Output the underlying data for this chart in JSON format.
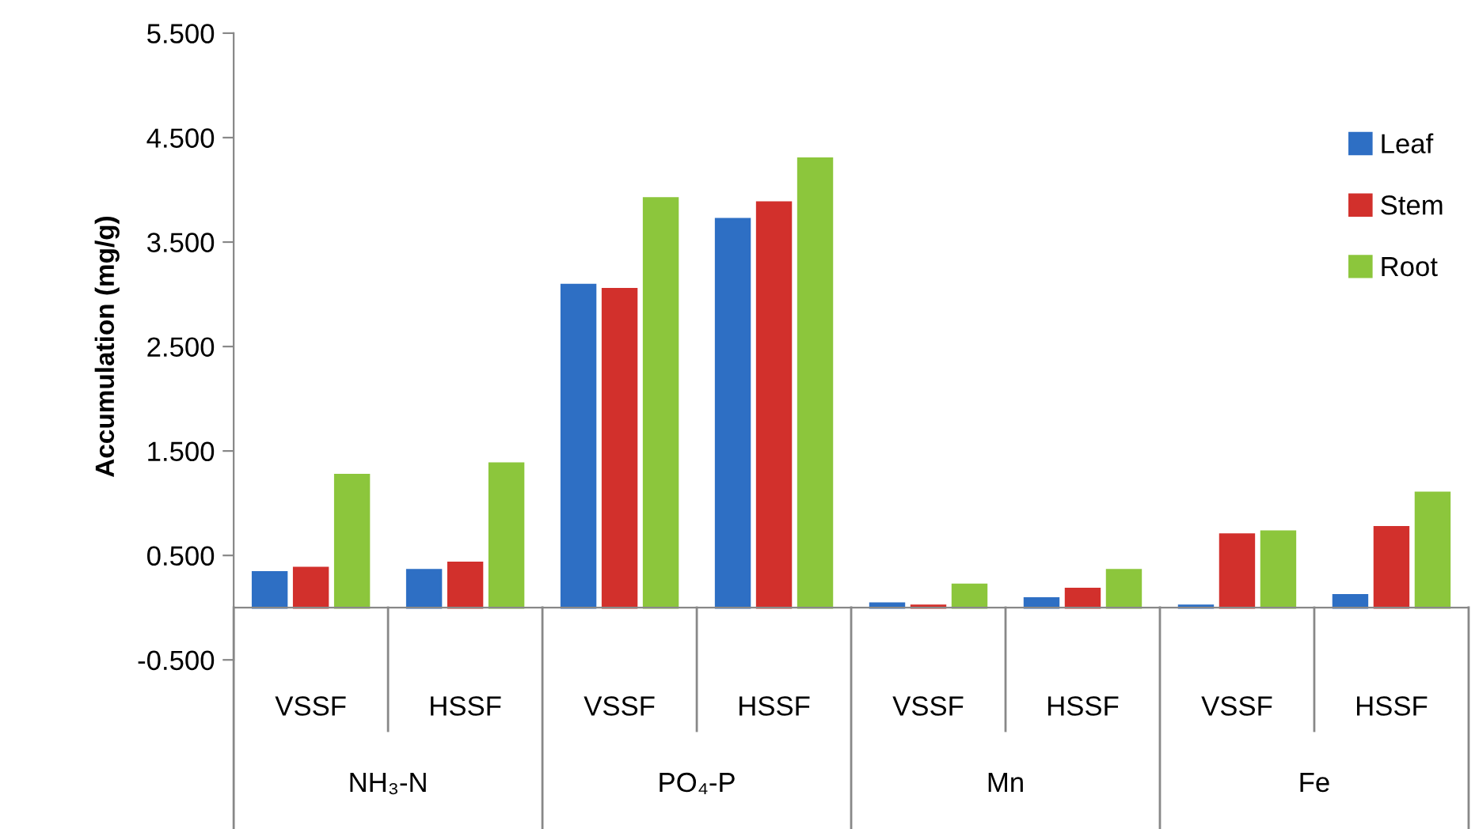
{
  "chart_data": {
    "type": "bar",
    "ylabel": "Accumulation (mg/g)",
    "categories": [
      "VSSF",
      "HSSF",
      "VSSF",
      "HSSF",
      "VSSF",
      "HSSF",
      "VSSF",
      "HSSF"
    ],
    "annotations": [
      "NH₃-N",
      "PO₄-P",
      "Mn",
      "Fe"
    ],
    "series": [
      {
        "name": "Leaf",
        "color": "#2e6fc4",
        "values": [
          0.34,
          0.36,
          3.09,
          3.72,
          0.04,
          0.09,
          0.02,
          0.12
        ]
      },
      {
        "name": "Stem",
        "color": "#d2302c",
        "values": [
          0.38,
          0.43,
          3.05,
          3.88,
          0.02,
          0.18,
          0.7,
          0.77
        ]
      },
      {
        "name": "Root",
        "color": "#8cc63c",
        "values": [
          1.27,
          1.38,
          3.92,
          4.3,
          0.22,
          0.36,
          0.73,
          1.1
        ]
      }
    ],
    "ylim": [
      -0.5,
      5.5
    ],
    "yticks": [
      {
        "value": -0.5,
        "label": "-0.500"
      },
      {
        "value": 0.5,
        "label": "0.500"
      },
      {
        "value": 1.5,
        "label": "1.500"
      },
      {
        "value": 2.5,
        "label": "2.500"
      },
      {
        "value": 3.5,
        "label": "3.500"
      },
      {
        "value": 4.5,
        "label": "4.500"
      },
      {
        "value": 5.5,
        "label": "5.500"
      }
    ],
    "legend": "right",
    "grid": false
  }
}
